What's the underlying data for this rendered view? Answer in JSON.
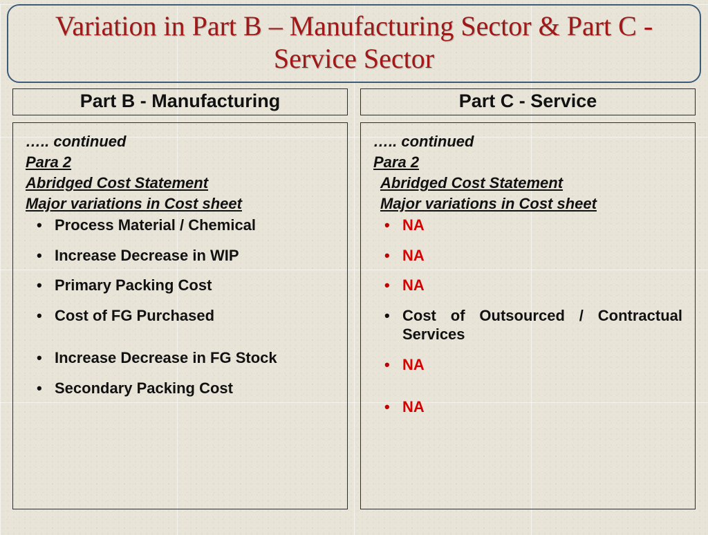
{
  "title": "Variation in Part B – Manufacturing Sector & Part C - Service Sector",
  "left": {
    "header": "Part B - Manufacturing",
    "continued": "….. continued",
    "para": "Para  2",
    "heading1": "Abridged Cost Statement",
    "heading2": "Major variations in Cost sheet",
    "items": [
      "Process Material / Chemical",
      "Increase Decrease in WIP",
      "Primary Packing Cost",
      "Cost of FG Purchased",
      "Increase Decrease in FG Stock",
      "Secondary Packing Cost"
    ]
  },
  "right": {
    "header": "Part C - Service",
    "continued": "….. continued",
    "para": "Para 2",
    "heading1": "Abridged Cost Statement",
    "heading2": "Major variations in Cost sheet",
    "items": [
      "NA",
      "NA",
      "NA",
      "Cost of Outsourced / Contractual Services",
      "NA",
      "NA"
    ]
  },
  "colors": {
    "title": "#a01818",
    "title_border": "#3b5b7a",
    "na": "#d80000",
    "red_bullet": "#c00000",
    "border": "#2b2b2b",
    "bg": "#e8e4d8"
  },
  "fonts": {
    "title_size": 40,
    "header_size": 27,
    "body_size": 22
  }
}
